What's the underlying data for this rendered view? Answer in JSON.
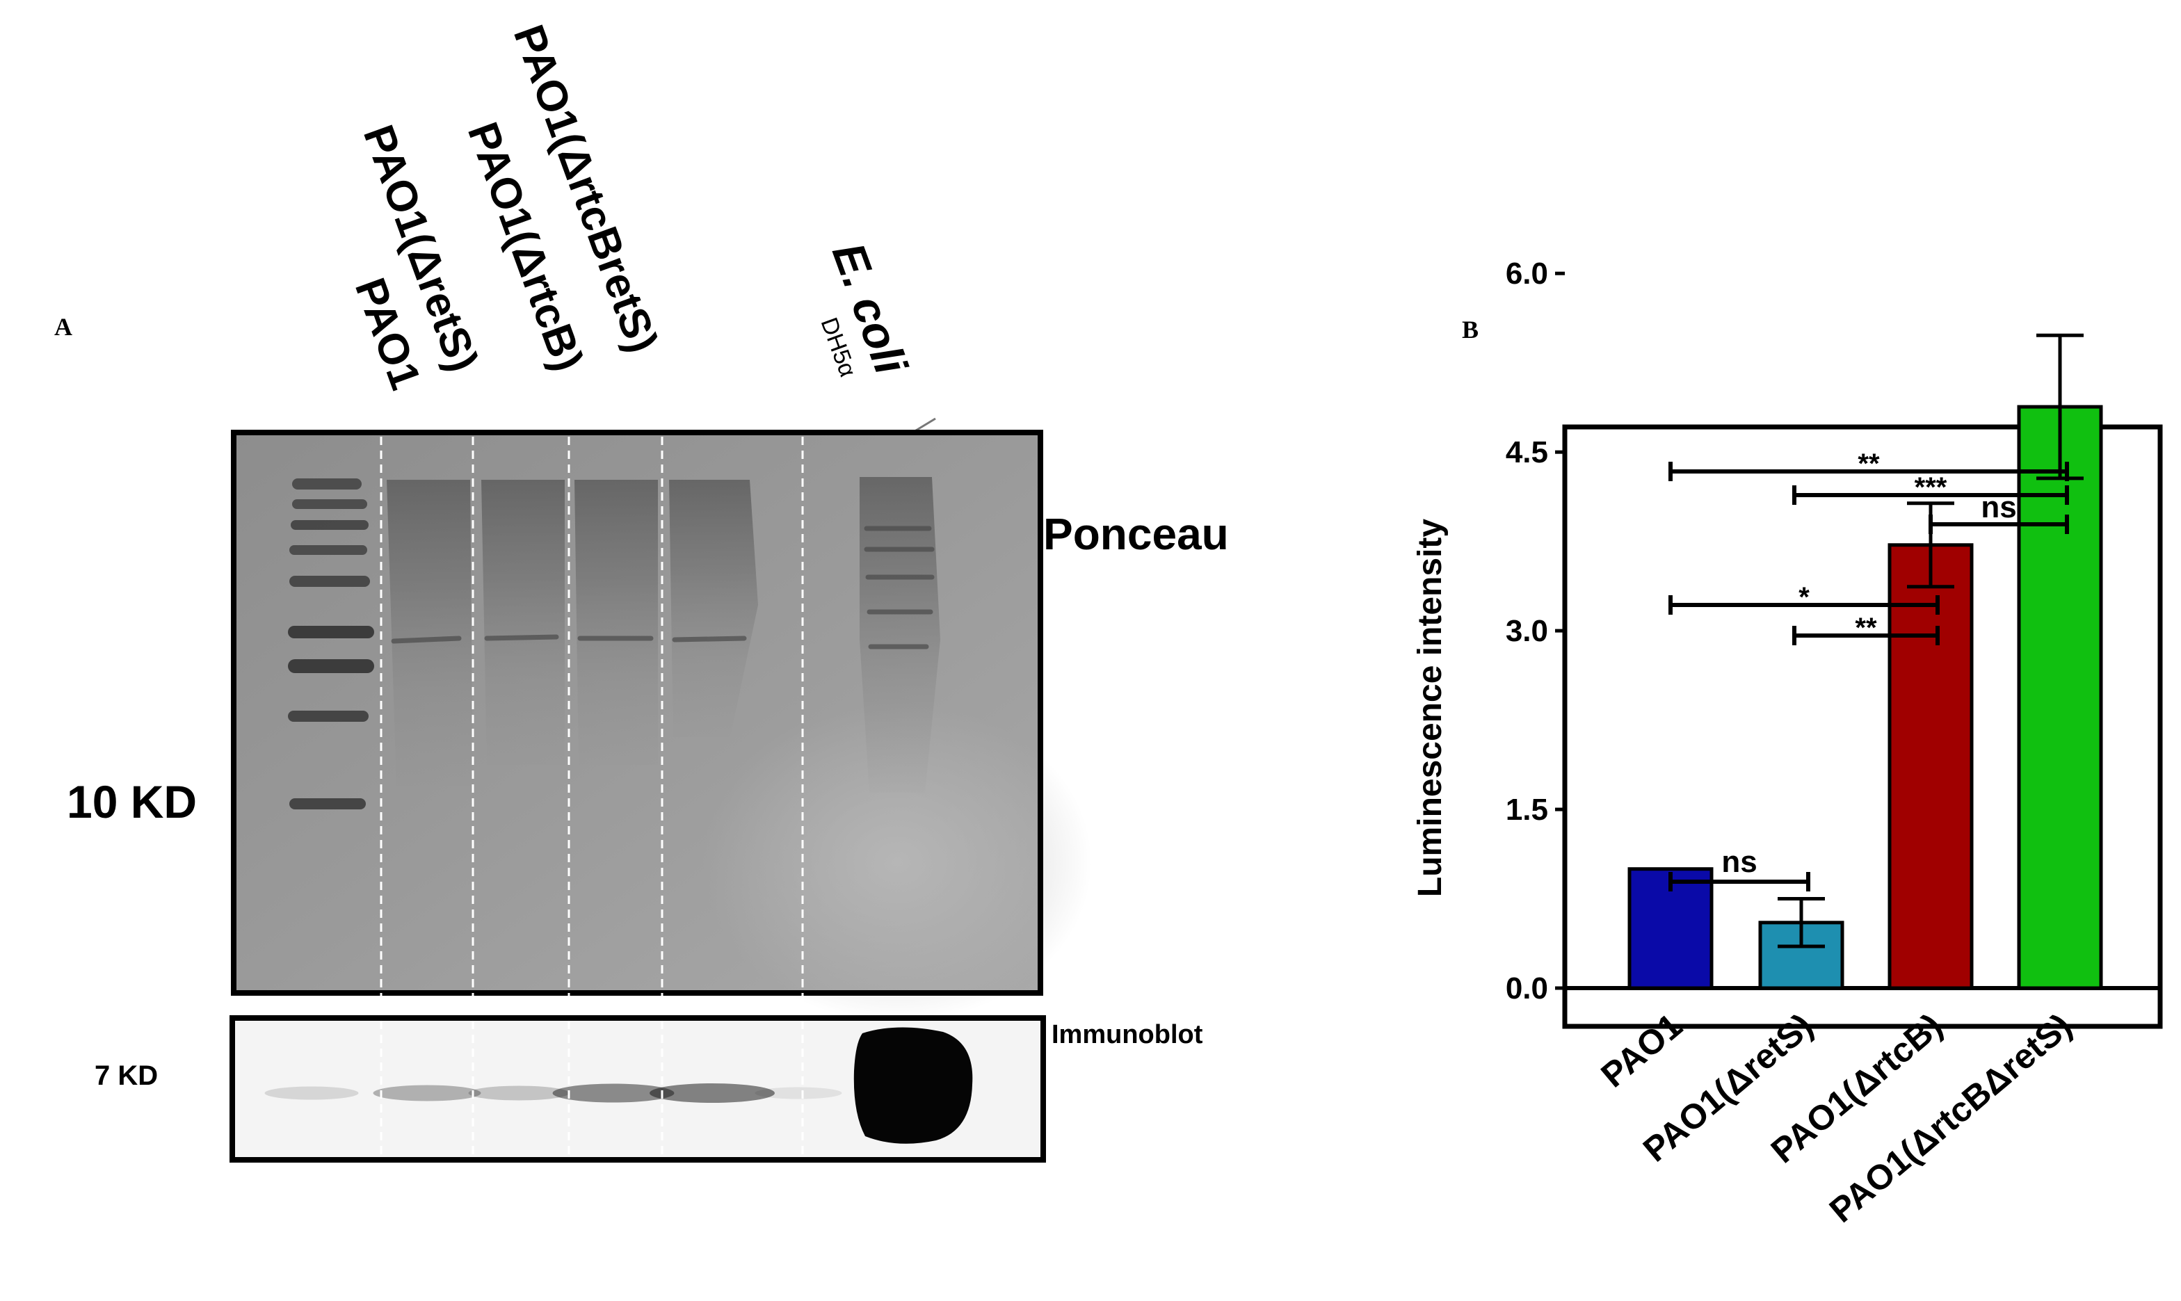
{
  "panel_a": {
    "label": "A",
    "lane_labels": [
      "PAO1",
      "PAO1(ΔretS)",
      "PAO1(ΔrtcB)",
      "PAO1(ΔrtcBretS)"
    ],
    "ecoli_label": "E. coli",
    "strain_label": "DH5α",
    "ponceau_label": "Ponceau",
    "immunoblot_label": "Immunoblot",
    "marker_10": "10 KD",
    "marker_7": "7 KD",
    "band_intensity": [
      0.15,
      0.35,
      0.25,
      0.55,
      0.6,
      0.05,
      1.0
    ]
  },
  "panel_b": {
    "label": "B"
  },
  "chart_data": {
    "type": "bar",
    "categories": [
      "PAO1",
      "PAO1(ΔretS)",
      "PAO1(ΔrtcB)",
      "PAO1(ΔrtcBΔretS)"
    ],
    "values": [
      1.0,
      0.55,
      3.72,
      4.88
    ],
    "errors": [
      0.0,
      0.2,
      0.35,
      0.6
    ],
    "colors": [
      "#0a0aa8",
      "#1e8fb0",
      "#a00000",
      "#10c010"
    ],
    "ylabel": "Luminescence intensity",
    "ylim": [
      0,
      7.0
    ],
    "yticks": [
      "0.0",
      "1.5",
      "3.0",
      "4.5",
      "6.0"
    ],
    "significance": [
      {
        "from": 0,
        "to": 3,
        "label": "**"
      },
      {
        "from": 1,
        "to": 3,
        "label": "***"
      },
      {
        "from": 2,
        "to": 3,
        "label": "ns"
      },
      {
        "from": 0,
        "to": 2,
        "label": "*"
      },
      {
        "from": 1,
        "to": 2,
        "label": "**"
      },
      {
        "from": 0,
        "to": 1,
        "label": "ns"
      }
    ]
  }
}
